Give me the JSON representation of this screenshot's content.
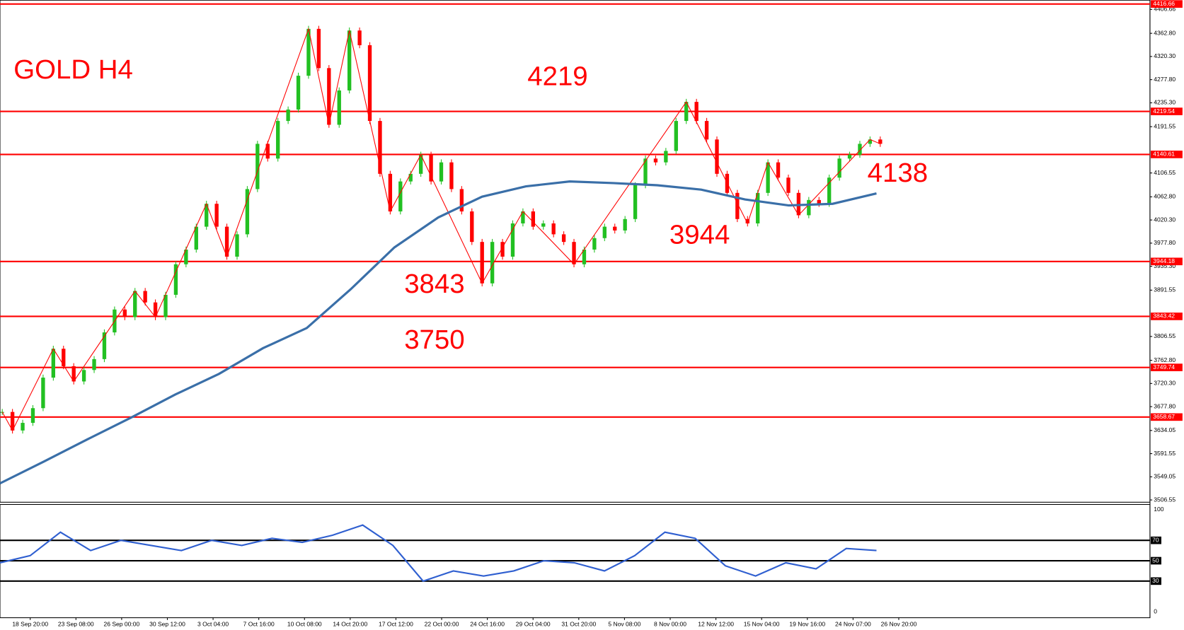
{
  "chart_data": [
    {
      "type": "candlestick",
      "title": "GOLD H4",
      "annotations": [
        "4219",
        "4138",
        "3944",
        "3843",
        "3750"
      ],
      "x_labels": [
        "18 Sep 20:00",
        "23 Sep 08:00",
        "26 Sep 00:00",
        "30 Sep 12:00",
        "3 Oct 04:00",
        "7 Oct 16:00",
        "10 Oct 08:00",
        "14 Oct 20:00",
        "17 Oct 12:00",
        "22 Oct 00:00",
        "24 Oct 16:00",
        "29 Oct 04:00",
        "31 Oct 20:00",
        "5 Nov 08:00",
        "8 Nov 00:00",
        "12 Nov 12:00",
        "15 Nov 04:00",
        "19 Nov 16:00",
        "24 Nov 07:00",
        "26 Nov 20:00"
      ],
      "values": [
        3668,
        3634,
        3648,
        3675,
        3731,
        3784,
        3752,
        3724,
        3745,
        3765,
        3814,
        3856,
        3842,
        3890,
        3869,
        3842,
        3883,
        3939,
        3966,
        4008,
        4050,
        4008,
        3953,
        3994,
        4077,
        4160,
        4133,
        4202,
        4223,
        4285,
        4371,
        4299,
        4195,
        4258,
        4368,
        4341,
        4202,
        4105,
        4036,
        4091,
        4105,
        4140,
        4091,
        4126,
        4077,
        4036,
        3980,
        3904,
        3980,
        3953,
        4014,
        4036,
        4008,
        4014,
        3994,
        3980,
        3939,
        3966,
        3987,
        4008,
        4001,
        4022,
        4084,
        4133,
        4126,
        4147,
        4202,
        4237,
        4202,
        4168,
        4105,
        4070,
        4022,
        4014,
        4070,
        4126,
        4098,
        4070,
        4029,
        4057,
        4050,
        4098,
        4133,
        4140,
        4160,
        4168,
        4160
      ],
      "up_color": "#22c022",
      "down_color": "#ff0000",
      "ma": {
        "color": "#3a6fa8",
        "values": [
          3537,
          3577,
          3618,
          3658,
          3700,
          3738,
          3785,
          3822,
          3893,
          3970,
          4025,
          4063,
          4082,
          4091,
          4088,
          4084,
          4076,
          4058,
          4047,
          4050,
          4069
        ]
      },
      "zigzag_color": "#ff0000",
      "levels": [
        4416.66,
        4219.54,
        4140.61,
        3944.18,
        3843.42,
        3749.74,
        3658.67
      ],
      "level_color": "#ff0000",
      "ylim": [
        3506.55,
        4416.66
      ],
      "yticks": [
        {
          "value": 4406.66,
          "label": "4406.66"
        },
        {
          "value": 4362.8,
          "label": "4362.80"
        },
        {
          "value": 4320.3,
          "label": "4320.30"
        },
        {
          "value": 4277.8,
          "label": "4277.80"
        },
        {
          "value": 4235.3,
          "label": "4235.30"
        },
        4191.55,
        4106.55,
        {
          "value": 4062.8,
          "label": "4062.80"
        },
        {
          "value": 4020.3,
          "label": "4020.30"
        },
        {
          "value": 3977.8,
          "label": "3977.80"
        },
        {
          "value": 3935.3,
          "label": "3935.30"
        },
        3891.55,
        3806.55,
        {
          "value": 3762.8,
          "label": "3762.80"
        },
        {
          "value": 3720.3,
          "label": "3720.30"
        },
        {
          "value": 3677.8,
          "label": "3677.80"
        },
        {
          "value": 3634.05,
          "label": "3634.05"
        },
        3591.55,
        {
          "value": 3549.05,
          "label": "3549.05"
        },
        3506.55
      ]
    },
    {
      "type": "line",
      "color": "#2f5fd0",
      "values": [
        48,
        55,
        78,
        60,
        70,
        65,
        60,
        70,
        65,
        72,
        68,
        75,
        85,
        65,
        30,
        40,
        35,
        40,
        50,
        48,
        40,
        55,
        78,
        72,
        45,
        35,
        48,
        42,
        62,
        60
      ],
      "ylim": [
        0,
        100
      ],
      "yticks": [
        0,
        100
      ],
      "levels": [
        30,
        50,
        70
      ],
      "level_color": "#000000"
    }
  ]
}
